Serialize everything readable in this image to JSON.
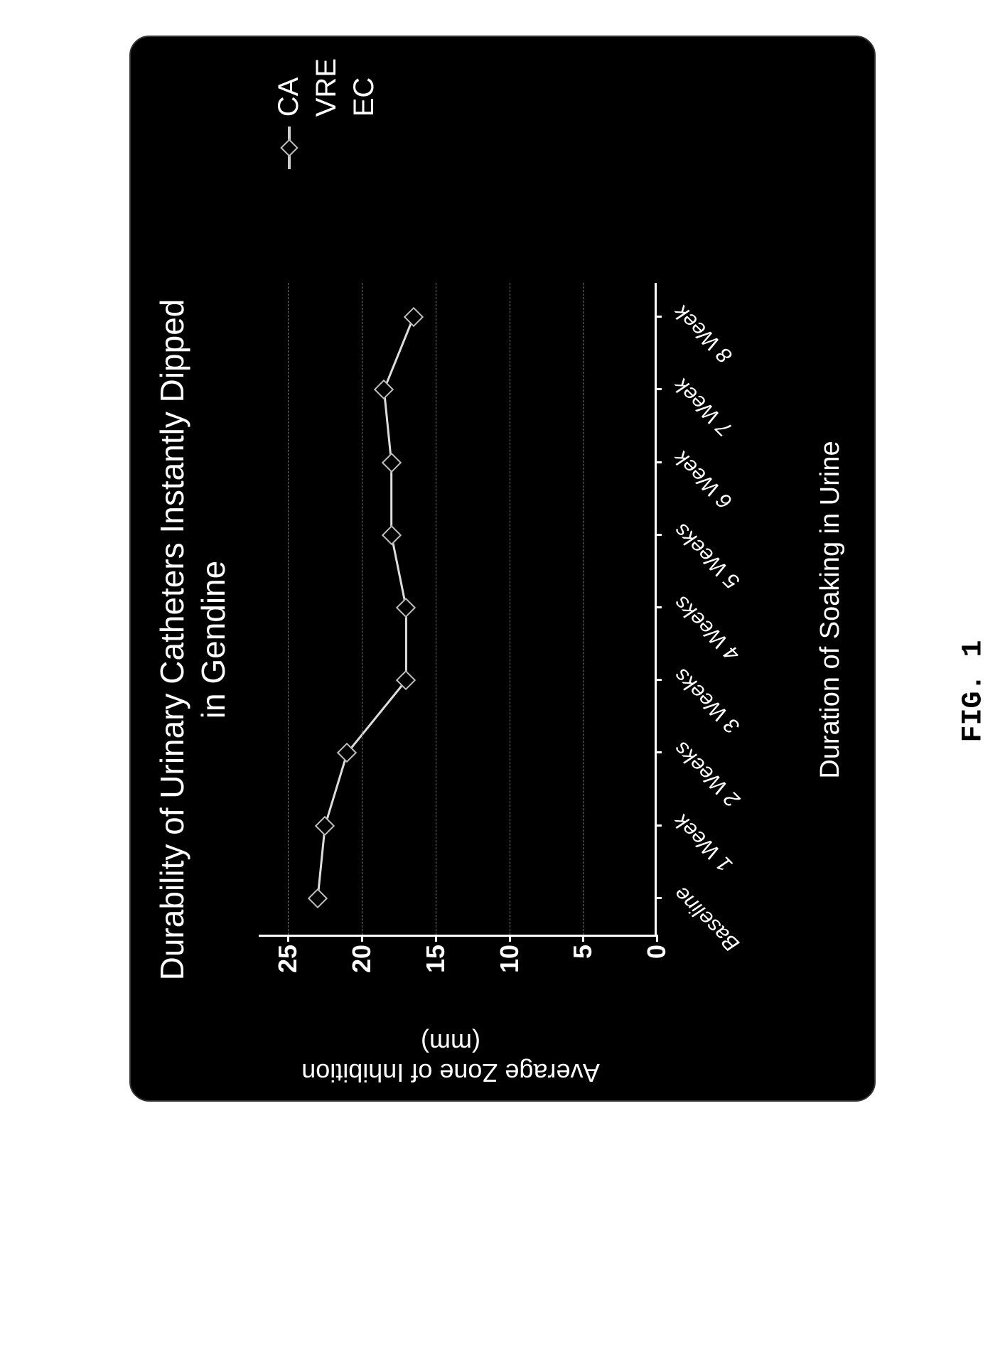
{
  "figure_label": "FIG. 1",
  "chart": {
    "type": "line",
    "title_line1": "Durability of Urinary Catheters Instantly Dipped",
    "title_line2": "in Gendine",
    "title_fontsize": 46,
    "background_color": "#000000",
    "text_color": "#ffffff",
    "border_radius": 28,
    "xaxis": {
      "label": "Duration of Soaking in Urine",
      "label_fontsize": 38,
      "categories": [
        "Baseline",
        "1 Week",
        "2 Weeks",
        "3 Weeks",
        "4 Weeks",
        "5 Weeks",
        "6 Week",
        "7 Week",
        "8 Week"
      ],
      "tick_fontsize": 30,
      "tick_fontstyle": "italic",
      "tick_rotation_deg": 45
    },
    "yaxis": {
      "label_line1": "Average Zone of Inhibition",
      "label_line2": "(mm)",
      "label_fontsize": 36,
      "min": 0,
      "max": 27,
      "ticks": [
        0,
        5,
        10,
        15,
        20,
        25
      ],
      "tick_fontsize": 36,
      "grid_color": "#6f6f6f"
    },
    "series": [
      {
        "name": "CA",
        "visible": true,
        "marker_shape": "diamond",
        "marker_border_color": "#bfbfbf",
        "marker_fill_color": "#000000",
        "marker_size": 20,
        "line_color": "#dddddd",
        "line_width": 3,
        "values": [
          23,
          22.5,
          21,
          17,
          17,
          18,
          18,
          18.5,
          16.5
        ]
      },
      {
        "name": "VRE",
        "visible": false,
        "marker_shape": "square",
        "marker_border_color": "#bfbfbf",
        "marker_fill_color": "#000000",
        "line_color": "#bbbbbb",
        "line_width": 3,
        "values": []
      },
      {
        "name": "EC",
        "visible": false,
        "marker_shape": "triangle",
        "marker_border_color": "#bfbfbf",
        "marker_fill_color": "#000000",
        "line_color": "#bbbbbb",
        "line_width": 3,
        "values": []
      }
    ],
    "legend": {
      "position": "right",
      "fontsize": 40,
      "items": [
        "CA",
        "VRE",
        "EC"
      ]
    }
  }
}
